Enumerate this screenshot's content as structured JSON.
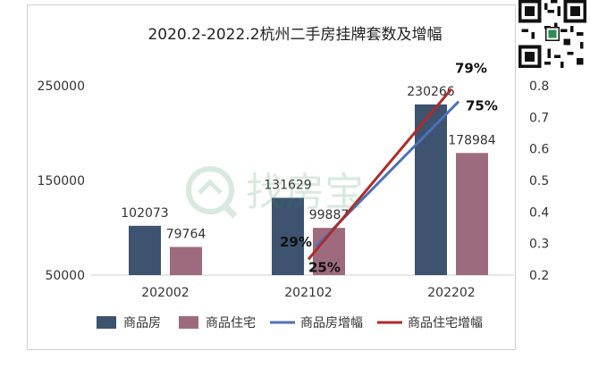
{
  "chart_data": {
    "type": "bar",
    "title": "2020.2-2022.2杭州二手房挂牌套数及增幅",
    "categories": [
      "202002",
      "202102",
      "202202"
    ],
    "series": [
      {
        "name": "商品房",
        "kind": "bar",
        "axis": "left",
        "color": "#3d5370",
        "values": [
          102073,
          131629,
          230266
        ]
      },
      {
        "name": "商品住宅",
        "kind": "bar",
        "axis": "left",
        "color": "#9e6b7e",
        "values": [
          79764,
          99887,
          178984
        ]
      },
      {
        "name": "商品房增幅",
        "kind": "line",
        "axis": "right",
        "color": "#4a72b8",
        "values": [
          null,
          0.29,
          0.75
        ],
        "labels": [
          "",
          "29%",
          "75%"
        ]
      },
      {
        "name": "商品住宅增幅",
        "kind": "line",
        "axis": "right",
        "color": "#b02a2a",
        "values": [
          null,
          0.25,
          0.79
        ],
        "labels": [
          "",
          "25%",
          "79%"
        ]
      }
    ],
    "left_axis": {
      "ticks": [
        "250000",
        "150000",
        "50000"
      ],
      "tick_values": [
        250000,
        150000,
        50000
      ],
      "range": [
        50000,
        250000
      ]
    },
    "right_axis": {
      "ticks": [
        "0.8",
        "0.7",
        "0.6",
        "0.5",
        "0.4",
        "0.3",
        "0.2"
      ],
      "tick_values": [
        0.8,
        0.7,
        0.6,
        0.5,
        0.4,
        0.3,
        0.2
      ],
      "range": [
        0.2,
        0.8
      ]
    },
    "legend": {
      "position": "bottom",
      "items": [
        "商品房",
        "商品住宅",
        "商品房增幅",
        "商品住宅增幅"
      ]
    },
    "grid": false
  },
  "watermark_text": "找房宝"
}
